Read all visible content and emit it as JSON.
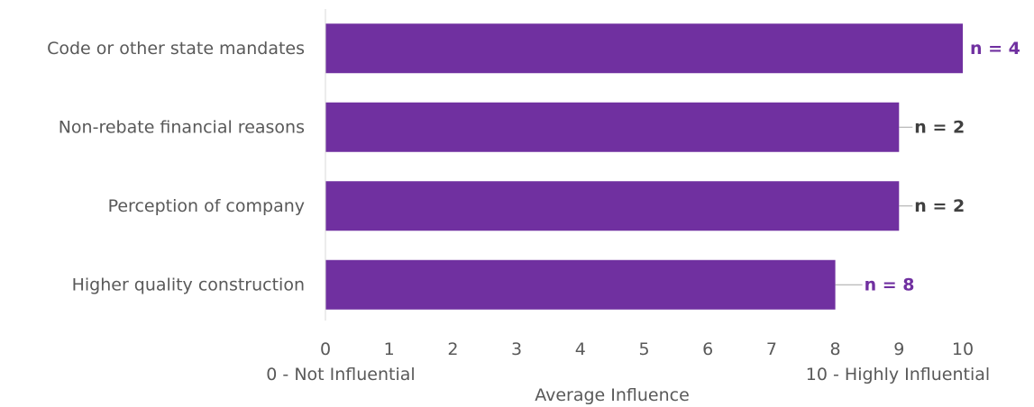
{
  "colors": {
    "bar": "#7030A0",
    "purple_label": "#7030A0",
    "dark_label": "#404040",
    "axis_text": "#595959",
    "axis_line": "#D9D9D9",
    "leader_line": "#A6A6A6"
  },
  "chart_data": {
    "type": "bar",
    "orientation": "horizontal",
    "categories": [
      "Code or other state mandates",
      "Non-rebate financial reasons",
      "Perception of company",
      "Higher quality construction"
    ],
    "values": [
      10,
      9,
      9,
      8
    ],
    "data_labels": [
      "n = 4",
      "n = 2",
      "n = 2",
      "n = 8"
    ],
    "data_label_colors": [
      "purple",
      "dark",
      "dark",
      "purple"
    ],
    "xlim": [
      0,
      10
    ],
    "xticks": [
      "0",
      "1",
      "2",
      "3",
      "4",
      "5",
      "6",
      "7",
      "8",
      "9",
      "10"
    ],
    "xlabel": "Average Influence",
    "x_min_annotation": "0 - Not Influential",
    "x_max_annotation": "10 - Highly Influential",
    "grid": false,
    "legend": "none"
  }
}
